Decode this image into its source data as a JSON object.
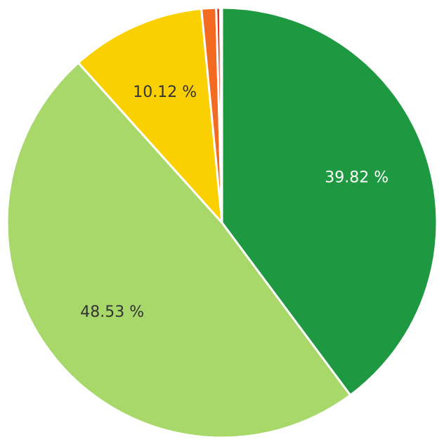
{
  "chart_data": {
    "type": "pie",
    "title": "",
    "start_angle_deg": 0,
    "direction": "clockwise",
    "slices": [
      {
        "value": 39.82,
        "label": "39.82 %",
        "color": "#1e9941",
        "label_color": "#ffffff"
      },
      {
        "value": 48.53,
        "label": "48.53 %",
        "color": "#a8d86a",
        "label_color": "#333333"
      },
      {
        "value": 10.12,
        "label": "10.12 %",
        "color": "#fad000",
        "label_color": "#333333"
      },
      {
        "value": 1.1,
        "label": "",
        "color": "#f26b20",
        "label_color": "#333333"
      },
      {
        "value": 0.3,
        "label": "",
        "color": "#e63324",
        "label_color": "#333333"
      },
      {
        "value": 0.13,
        "label": "",
        "color": "#c0392b",
        "label_color": "#333333"
      }
    ]
  }
}
